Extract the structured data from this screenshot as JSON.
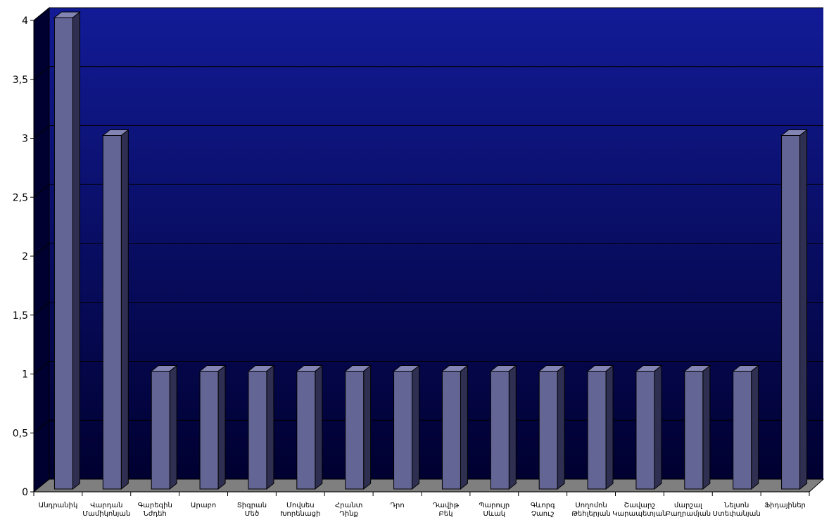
{
  "chart_data": {
    "type": "bar",
    "title": "",
    "xlabel": "",
    "ylabel": "",
    "ylim": [
      0,
      4
    ],
    "yticks": [
      "0",
      "0,5",
      "1",
      "1,5",
      "2",
      "2,5",
      "3",
      "3,5",
      "4"
    ],
    "grid": true,
    "legend": "none",
    "categories": [
      "Անդրանիկ",
      "Վարդան Մամիկոնյան",
      "Գարեգին Նժդեհ",
      "Արաբո",
      "Տիգրան Մեծ",
      "Մովսես Խորենացի",
      "Հրանտ Դինք",
      "Դրո",
      "Դավիթ Բեկ",
      "Պարույր Սևակ",
      "Գևորգ Չաուշ",
      "Սողոմոն Թեհլերյան",
      "Շավարշ Կարապետյան",
      "մարշալ Բաղրամյան",
      "Նելսոն Ստեփանյան",
      "Ֆիդայիներ"
    ],
    "values": [
      4,
      3,
      1,
      1,
      1,
      1,
      1,
      1,
      1,
      1,
      1,
      1,
      1,
      1,
      1,
      3
    ],
    "colors": {
      "bar_front": "#636595",
      "bar_side": "#2f2f52",
      "bar_top": "#8284b4",
      "wall_top": "#121b96",
      "wall_bottom": "#000030",
      "floor": "#7f7f7f",
      "gridline": "#000000"
    }
  }
}
